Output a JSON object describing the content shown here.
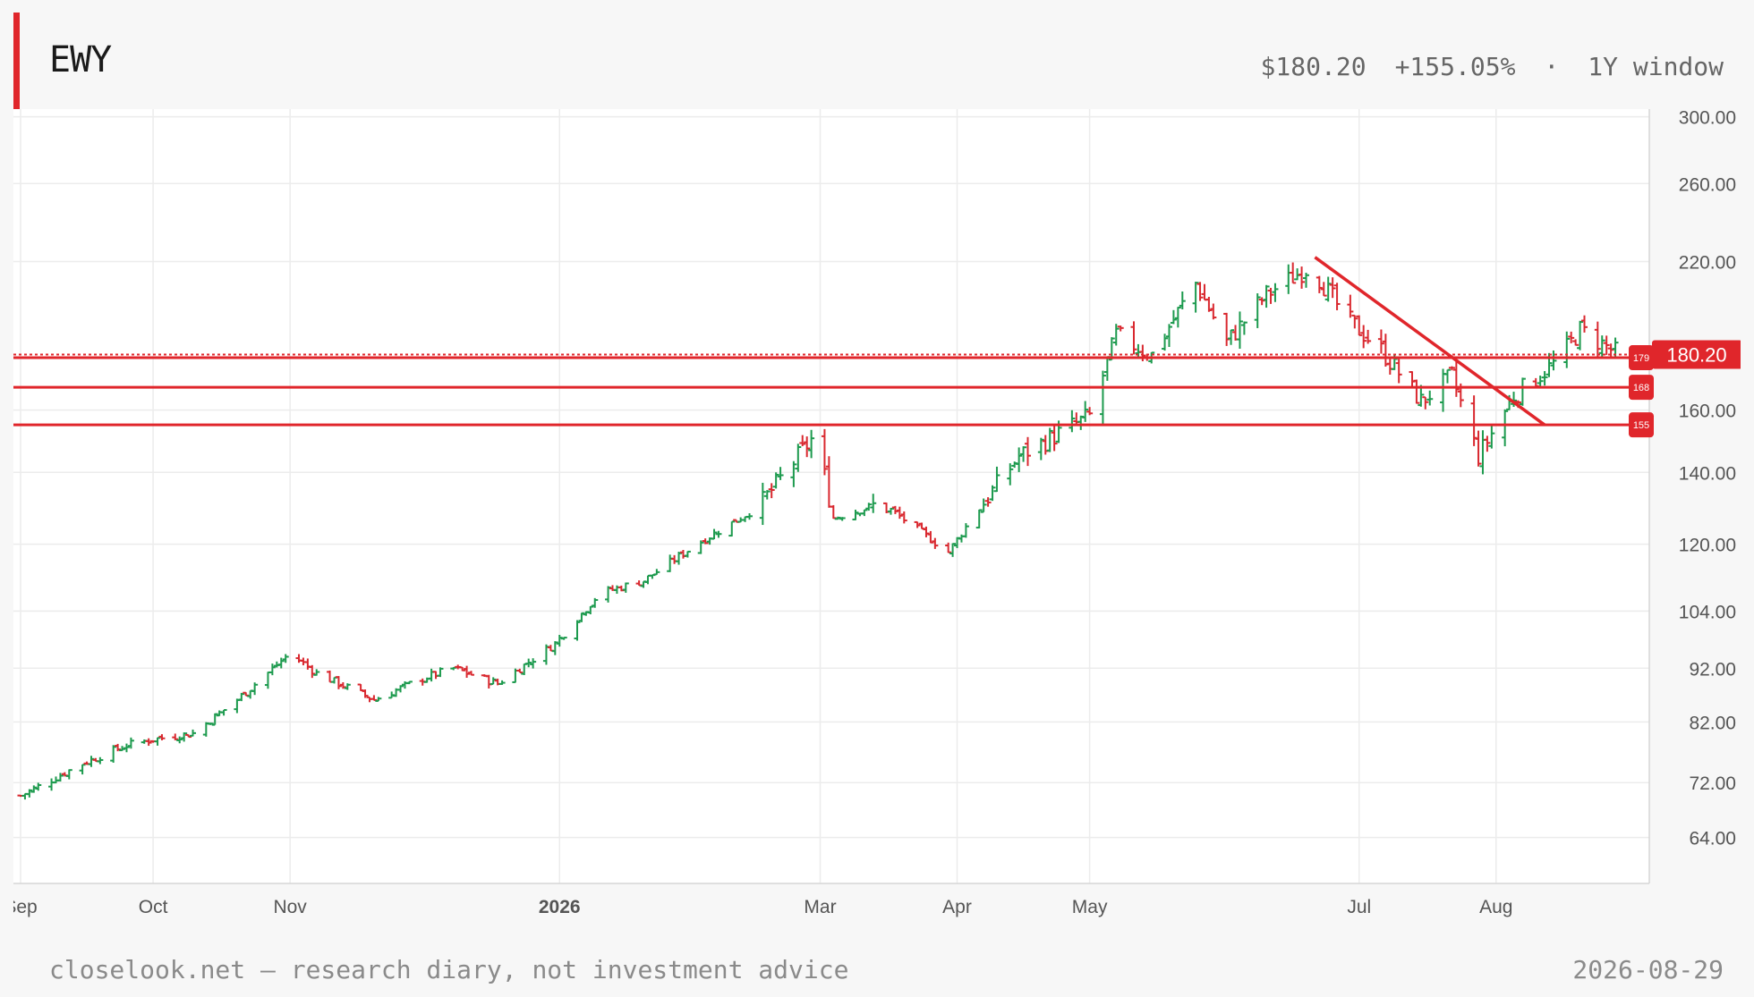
{
  "header": {
    "ticker": "EWY",
    "price": "$180.20",
    "change": "+155.05%",
    "separator": "·",
    "window": "1Y window"
  },
  "footer": {
    "disclaimer": "closelook.net — research diary, not investment advice",
    "date": "2026-08-29"
  },
  "colors": {
    "accent": "#e0262b",
    "up": "#1d9a4e",
    "down": "#d9282f",
    "grid": "#ececec"
  },
  "chart_data": {
    "type": "ohlc",
    "scale": "log",
    "ylim": [
      58,
      305
    ],
    "y_ticks": [
      {
        "v": 300,
        "label": "300.00"
      },
      {
        "v": 260,
        "label": "260.00"
      },
      {
        "v": 220,
        "label": "220.00"
      },
      {
        "v": 160,
        "label": "160.00"
      },
      {
        "v": 140,
        "label": "140.00"
      },
      {
        "v": 120,
        "label": "120.00"
      },
      {
        "v": 104,
        "label": "104.00"
      },
      {
        "v": 92,
        "label": "92.00"
      },
      {
        "v": 82,
        "label": "82.00"
      },
      {
        "v": 72,
        "label": "72.00"
      },
      {
        "v": 64,
        "label": "64.00"
      }
    ],
    "x_ticks": [
      {
        "date": "2025-09-01",
        "label": "Sep",
        "bold": false
      },
      {
        "date": "2025-10-01",
        "label": "Oct",
        "bold": false
      },
      {
        "date": "2025-11-01",
        "label": "Nov",
        "bold": false
      },
      {
        "date": "2026-01-01",
        "label": "2026",
        "bold": true
      },
      {
        "date": "2026-03-01",
        "label": "Mar",
        "bold": false
      },
      {
        "date": "2026-04-01",
        "label": "Apr",
        "bold": false
      },
      {
        "date": "2026-05-01",
        "label": "May",
        "bold": false
      },
      {
        "date": "2026-07-01",
        "label": "Jul",
        "bold": false
      },
      {
        "date": "2026-08-01",
        "label": "Aug",
        "bold": false
      }
    ],
    "x_range": [
      "2025-09-01",
      "2026-08-29"
    ],
    "anchors": [
      {
        "date": "2025-09-01",
        "close": 70
      },
      {
        "date": "2025-09-15",
        "close": 75
      },
      {
        "date": "2025-09-25",
        "close": 78
      },
      {
        "date": "2025-10-01",
        "close": 79
      },
      {
        "date": "2025-10-10",
        "close": 80
      },
      {
        "date": "2025-10-20",
        "close": 86
      },
      {
        "date": "2025-11-01",
        "close": 95
      },
      {
        "date": "2025-11-07",
        "close": 91
      },
      {
        "date": "2025-11-20",
        "close": 86
      },
      {
        "date": "2025-12-01",
        "close": 90
      },
      {
        "date": "2025-12-08",
        "close": 92
      },
      {
        "date": "2025-12-18",
        "close": 89
      },
      {
        "date": "2025-12-31",
        "close": 97
      },
      {
        "date": "2026-01-10",
        "close": 108
      },
      {
        "date": "2026-01-20",
        "close": 111
      },
      {
        "date": "2026-02-01",
        "close": 120
      },
      {
        "date": "2026-02-15",
        "close": 130
      },
      {
        "date": "2026-02-28",
        "close": 152
      },
      {
        "date": "2026-03-04",
        "close": 127
      },
      {
        "date": "2026-03-15",
        "close": 131
      },
      {
        "date": "2026-03-30",
        "close": 118
      },
      {
        "date": "2026-04-05",
        "close": 128
      },
      {
        "date": "2026-04-15",
        "close": 145
      },
      {
        "date": "2026-05-01",
        "close": 158
      },
      {
        "date": "2026-05-07",
        "close": 188
      },
      {
        "date": "2026-05-15",
        "close": 180
      },
      {
        "date": "2026-05-25",
        "close": 210
      },
      {
        "date": "2026-06-01",
        "close": 185
      },
      {
        "date": "2026-06-10",
        "close": 205
      },
      {
        "date": "2026-06-20",
        "close": 218
      },
      {
        "date": "2026-06-28",
        "close": 195
      },
      {
        "date": "2026-07-06",
        "close": 182
      },
      {
        "date": "2026-07-15",
        "close": 163
      },
      {
        "date": "2026-07-22",
        "close": 172
      },
      {
        "date": "2026-07-28",
        "close": 145
      },
      {
        "date": "2026-08-05",
        "close": 165
      },
      {
        "date": "2026-08-15",
        "close": 178
      },
      {
        "date": "2026-08-20",
        "close": 190
      },
      {
        "date": "2026-08-29",
        "close": 180
      }
    ],
    "horizontal_lines": [
      {
        "value": 180.2,
        "label": "180.20",
        "style": "dotted"
      },
      {
        "value": 179.0,
        "label": "179",
        "style": "solid"
      },
      {
        "value": 168.0,
        "label": "168",
        "style": "solid"
      },
      {
        "value": 155.0,
        "label": "155",
        "style": "solid"
      }
    ],
    "trendline": {
      "from": {
        "date": "2026-06-21",
        "value": 222
      },
      "to": {
        "date": "2026-08-12",
        "value": 155
      }
    },
    "last_price": {
      "value": 180.2,
      "label": "180.20"
    }
  }
}
